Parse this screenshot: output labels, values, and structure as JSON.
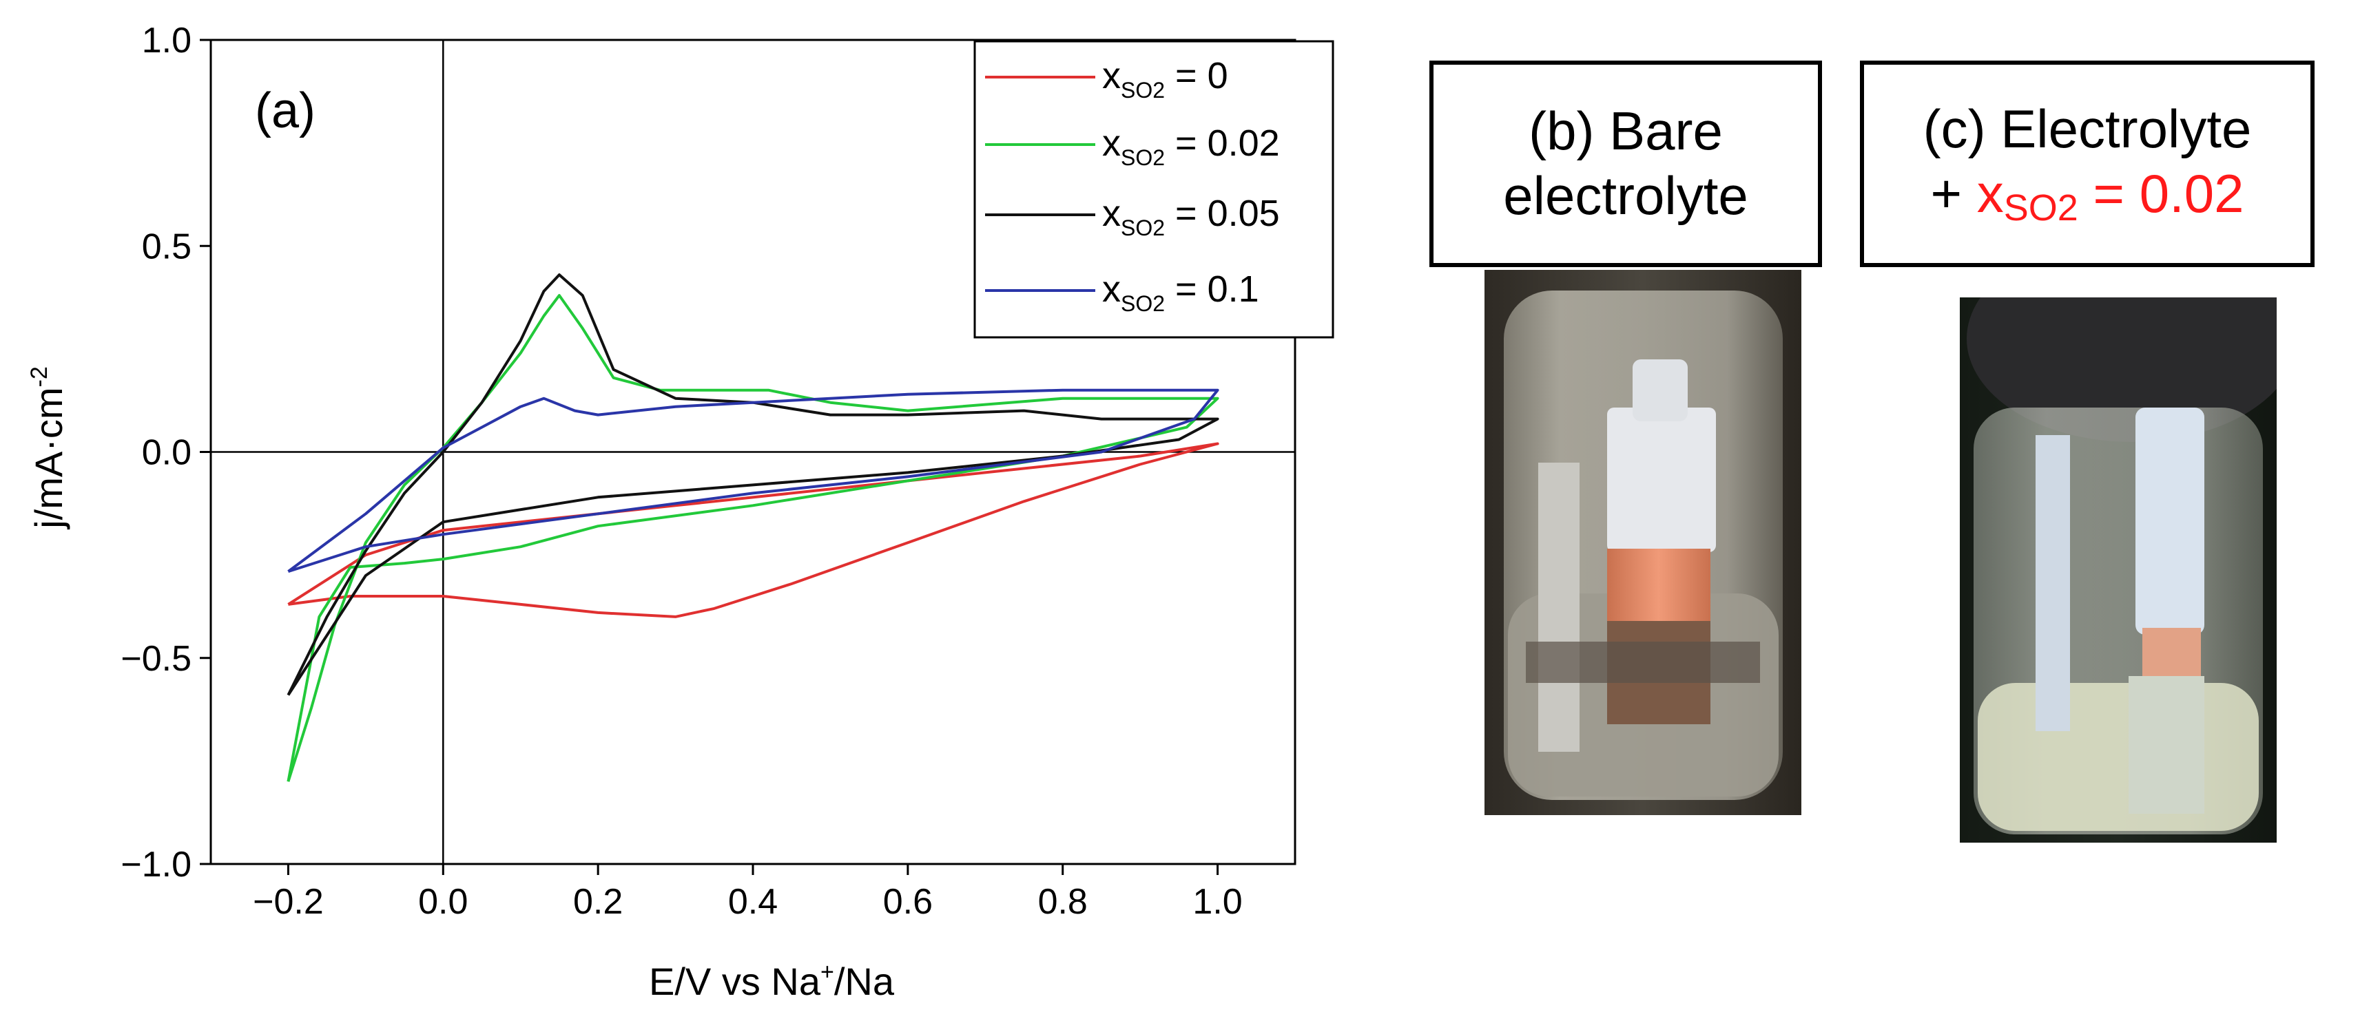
{
  "chart_data": {
    "type": "line",
    "panel_label": "(a)",
    "xlabel": "E/V vs Na",
    "xlabel_sup": "+",
    "xlabel_tail": "/Na",
    "ylabel": "j/mA·cm",
    "ylabel_sup": "-2",
    "xlim": [
      -0.3,
      1.1
    ],
    "ylim": [
      -1.0,
      1.0
    ],
    "xticks": [
      -0.2,
      0.0,
      0.2,
      0.4,
      0.6,
      0.8,
      1.0
    ],
    "xtick_labels": [
      "−0.2",
      "0.0",
      "0.2",
      "0.4",
      "0.6",
      "0.8",
      "1.0"
    ],
    "yticks": [
      -1.0,
      -0.5,
      0.0,
      0.5,
      1.0
    ],
    "ytick_labels": [
      "−1.0",
      "−0.5",
      "0.0",
      "0.5",
      "1.0"
    ],
    "legend_position": "top-right",
    "series": [
      {
        "name_main": "x",
        "name_sub": "SO2",
        "name_value": " = 0",
        "color": "#e03030",
        "x": [
          -0.2,
          -0.12,
          -0.05,
          0.0,
          0.1,
          0.2,
          0.3,
          0.35,
          0.45,
          0.6,
          0.75,
          0.9,
          0.98,
          1.0,
          0.9,
          0.7,
          0.5,
          0.3,
          0.1,
          0.0,
          -0.1,
          -0.2
        ],
        "y": [
          -0.37,
          -0.35,
          -0.35,
          -0.35,
          -0.37,
          -0.39,
          -0.4,
          -0.38,
          -0.32,
          -0.22,
          -0.12,
          -0.03,
          0.01,
          0.02,
          -0.01,
          -0.05,
          -0.09,
          -0.13,
          -0.17,
          -0.19,
          -0.25,
          -0.37
        ]
      },
      {
        "name_main": "x",
        "name_sub": "SO2",
        "name_value": " = 0.02",
        "color": "#22c93a",
        "x": [
          -0.2,
          -0.17,
          -0.14,
          -0.1,
          -0.05,
          0.0,
          0.05,
          0.1,
          0.13,
          0.15,
          0.18,
          0.22,
          0.28,
          0.35,
          0.42,
          0.5,
          0.6,
          0.8,
          0.95,
          1.0,
          0.96,
          0.8,
          0.6,
          0.4,
          0.2,
          0.1,
          0.0,
          -0.05,
          -0.12,
          -0.16,
          -0.2
        ],
        "y": [
          -0.8,
          -0.62,
          -0.42,
          -0.22,
          -0.08,
          0.01,
          0.12,
          0.24,
          0.33,
          0.38,
          0.3,
          0.18,
          0.15,
          0.15,
          0.15,
          0.12,
          0.1,
          0.13,
          0.13,
          0.13,
          0.06,
          -0.01,
          -0.07,
          -0.13,
          -0.18,
          -0.23,
          -0.26,
          -0.27,
          -0.28,
          -0.4,
          -0.8
        ]
      },
      {
        "name_main": "x",
        "name_sub": "SO2",
        "name_value": " = 0.05",
        "color": "#111111",
        "x": [
          -0.2,
          -0.15,
          -0.1,
          -0.05,
          0.0,
          0.05,
          0.1,
          0.13,
          0.15,
          0.18,
          0.22,
          0.3,
          0.4,
          0.5,
          0.6,
          0.75,
          0.85,
          0.95,
          1.0,
          0.95,
          0.8,
          0.6,
          0.4,
          0.2,
          0.0,
          -0.1,
          -0.2
        ],
        "y": [
          -0.59,
          -0.4,
          -0.24,
          -0.1,
          0.0,
          0.12,
          0.27,
          0.39,
          0.43,
          0.38,
          0.2,
          0.13,
          0.12,
          0.09,
          0.09,
          0.1,
          0.08,
          0.08,
          0.08,
          0.03,
          -0.01,
          -0.05,
          -0.08,
          -0.11,
          -0.17,
          -0.3,
          -0.59
        ]
      },
      {
        "name_main": "x",
        "name_sub": "SO2",
        "name_value": " = 0.1",
        "color": "#2a35a8",
        "x": [
          -0.2,
          -0.1,
          0.0,
          0.05,
          0.1,
          0.13,
          0.17,
          0.2,
          0.3,
          0.4,
          0.5,
          0.6,
          0.8,
          0.95,
          1.0,
          0.97,
          0.85,
          0.6,
          0.4,
          0.2,
          0.0,
          -0.1,
          -0.2
        ],
        "y": [
          -0.29,
          -0.15,
          0.01,
          0.06,
          0.11,
          0.13,
          0.1,
          0.09,
          0.11,
          0.12,
          0.13,
          0.14,
          0.15,
          0.15,
          0.15,
          0.08,
          0.0,
          -0.06,
          -0.1,
          -0.15,
          -0.2,
          -0.23,
          -0.29
        ]
      }
    ]
  },
  "panels": {
    "b": {
      "line1": "(b) Bare",
      "line2": "electrolyte"
    },
    "c": {
      "line1": "(c) Electrolyte",
      "line2_prefix": "+ ",
      "red_main": "x",
      "red_sub": "SO2",
      "red_value": " = 0.02"
    }
  },
  "colors": {
    "caption_accent": "#ff1a1a"
  }
}
